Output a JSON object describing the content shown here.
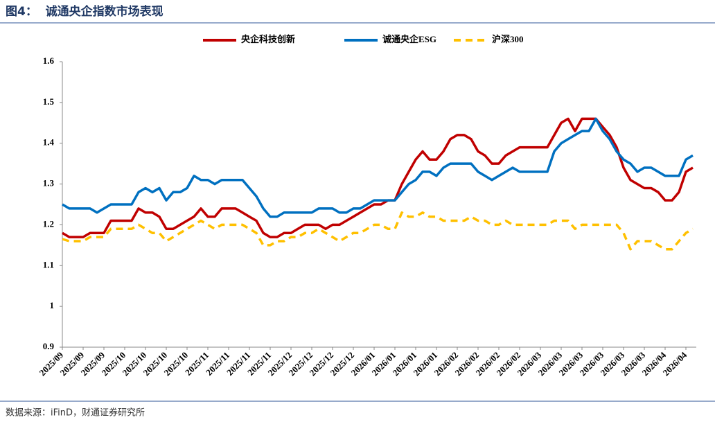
{
  "header": {
    "title": "图4：  诚通央企指数市场表现"
  },
  "footer": {
    "source": "数据来源：iFinD，财通证券研究所"
  },
  "chart_data": {
    "type": "line",
    "categories": [
      "2025/09",
      null,
      null,
      "2025/09",
      null,
      null,
      "2025/09",
      null,
      null,
      "2025/10",
      null,
      null,
      "2025/10",
      null,
      null,
      "2025/10",
      null,
      null,
      "2025/10",
      null,
      null,
      "2025/11",
      null,
      null,
      "2025/11",
      null,
      null,
      "2025/11",
      null,
      null,
      "2025/11",
      null,
      null,
      "2025/12",
      null,
      null,
      "2025/12",
      null,
      null,
      "2025/12",
      null,
      null,
      "2025/12",
      null,
      null,
      "2026/01",
      null,
      null,
      "2026/01",
      null,
      null,
      "2026/01",
      null,
      null,
      "2026/01",
      null,
      null,
      "2026/02",
      null,
      null,
      "2026/02",
      null,
      null,
      "2026/02",
      null,
      null,
      "2026/02",
      null,
      null,
      "2026/03",
      null,
      null,
      "2026/03",
      null,
      null,
      "2026/03",
      null,
      null,
      "2026/03",
      null,
      null,
      "2026/03",
      null,
      null,
      "2026/03",
      null,
      null,
      "2026/04",
      null,
      null,
      "2026/04",
      null
    ],
    "series": [
      {
        "name": "央企科技创新",
        "color": "#c00000",
        "dash": false,
        "values": [
          1.18,
          1.17,
          1.17,
          1.17,
          1.18,
          1.18,
          1.18,
          1.21,
          1.21,
          1.21,
          1.21,
          1.24,
          1.23,
          1.23,
          1.22,
          1.19,
          1.19,
          1.2,
          1.21,
          1.22,
          1.24,
          1.22,
          1.22,
          1.24,
          1.24,
          1.24,
          1.23,
          1.22,
          1.21,
          1.18,
          1.17,
          1.17,
          1.18,
          1.18,
          1.19,
          1.2,
          1.2,
          1.2,
          1.19,
          1.2,
          1.2,
          1.21,
          1.22,
          1.23,
          1.24,
          1.25,
          1.25,
          1.26,
          1.26,
          1.3,
          1.33,
          1.36,
          1.38,
          1.36,
          1.36,
          1.38,
          1.41,
          1.42,
          1.42,
          1.41,
          1.38,
          1.37,
          1.35,
          1.35,
          1.37,
          1.38,
          1.39,
          1.39,
          1.39,
          1.39,
          1.39,
          1.42,
          1.45,
          1.46,
          1.43,
          1.46,
          1.46,
          1.46,
          1.44,
          1.42,
          1.39,
          1.34,
          1.31,
          1.3,
          1.29,
          1.29,
          1.28,
          1.26,
          1.26,
          1.28,
          1.33,
          1.34
        ]
      },
      {
        "name": "诚通央企ESG",
        "color": "#0070c0",
        "dash": false,
        "values": [
          1.25,
          1.24,
          1.24,
          1.24,
          1.24,
          1.23,
          1.24,
          1.25,
          1.25,
          1.25,
          1.25,
          1.28,
          1.29,
          1.28,
          1.29,
          1.26,
          1.28,
          1.28,
          1.29,
          1.32,
          1.31,
          1.31,
          1.3,
          1.31,
          1.31,
          1.31,
          1.31,
          1.29,
          1.27,
          1.24,
          1.22,
          1.22,
          1.23,
          1.23,
          1.23,
          1.23,
          1.23,
          1.24,
          1.24,
          1.24,
          1.23,
          1.23,
          1.24,
          1.24,
          1.25,
          1.26,
          1.26,
          1.26,
          1.26,
          1.28,
          1.3,
          1.31,
          1.33,
          1.33,
          1.32,
          1.34,
          1.35,
          1.35,
          1.35,
          1.35,
          1.33,
          1.32,
          1.31,
          1.32,
          1.33,
          1.34,
          1.33,
          1.33,
          1.33,
          1.33,
          1.33,
          1.38,
          1.4,
          1.41,
          1.42,
          1.43,
          1.43,
          1.46,
          1.43,
          1.41,
          1.38,
          1.36,
          1.35,
          1.33,
          1.34,
          1.34,
          1.33,
          1.32,
          1.32,
          1.32,
          1.36,
          1.37
        ]
      },
      {
        "name": "沪深300",
        "color": "#ffc000",
        "dash": true,
        "values": [
          1.165,
          1.16,
          1.16,
          1.16,
          1.17,
          1.17,
          1.17,
          1.19,
          1.19,
          1.19,
          1.19,
          1.2,
          1.19,
          1.18,
          1.18,
          1.16,
          1.17,
          1.18,
          1.19,
          1.2,
          1.21,
          1.2,
          1.19,
          1.2,
          1.2,
          1.2,
          1.2,
          1.19,
          1.18,
          1.15,
          1.15,
          1.16,
          1.16,
          1.17,
          1.17,
          1.18,
          1.18,
          1.19,
          1.18,
          1.17,
          1.16,
          1.17,
          1.18,
          1.18,
          1.19,
          1.2,
          1.2,
          1.19,
          1.19,
          1.23,
          1.22,
          1.22,
          1.23,
          1.22,
          1.22,
          1.21,
          1.21,
          1.21,
          1.21,
          1.22,
          1.21,
          1.21,
          1.2,
          1.2,
          1.21,
          1.2,
          1.2,
          1.2,
          1.2,
          1.2,
          1.2,
          1.21,
          1.21,
          1.21,
          1.19,
          1.2,
          1.2,
          1.2,
          1.2,
          1.2,
          1.2,
          1.18,
          1.14,
          1.16,
          1.16,
          1.16,
          1.15,
          1.14,
          1.14,
          1.16,
          1.18,
          1.19
        ]
      }
    ],
    "ylim": [
      0.9,
      1.6
    ],
    "yticks": [
      0.9,
      1,
      1.1,
      1.2,
      1.3,
      1.4,
      1.5,
      1.6
    ],
    "grid": false,
    "legend": "top"
  }
}
